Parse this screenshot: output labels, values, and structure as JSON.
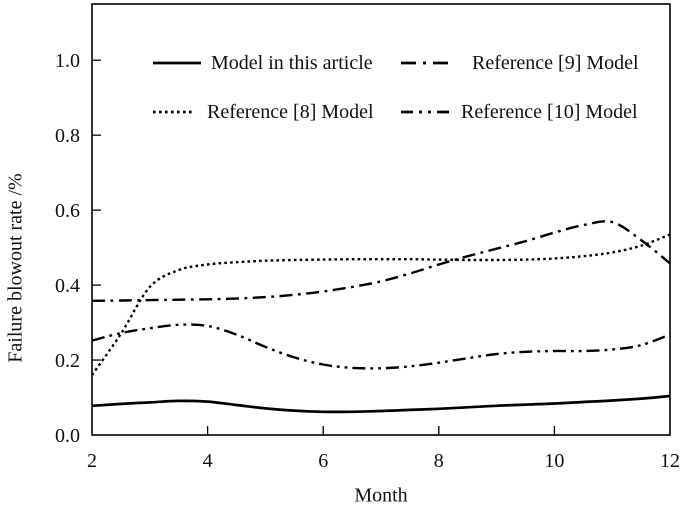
{
  "figure": {
    "background": "#ffffff",
    "line_color": "#000000"
  },
  "chart_data": {
    "type": "line",
    "title": "",
    "xlabel": "Month",
    "ylabel": "Failure blowout rate /%",
    "xlim": [
      2,
      12
    ],
    "ylim": [
      0,
      1.15
    ],
    "xticks": [
      "2",
      "4",
      "6",
      "8",
      "10",
      "12"
    ],
    "xtick_values": [
      2,
      4,
      6,
      8,
      10,
      12
    ],
    "yticks": [
      "0.0",
      "0.2",
      "0.4",
      "0.6",
      "0.8",
      "1.0"
    ],
    "ytick_values": [
      0.0,
      0.2,
      0.4,
      0.6,
      0.8,
      1.0
    ],
    "grid": false,
    "legend_position": "inside-top",
    "x": [
      2,
      2.5,
      3,
      3.5,
      4,
      4.5,
      5,
      5.5,
      6,
      6.5,
      7,
      7.5,
      8,
      8.5,
      9,
      9.5,
      10,
      10.5,
      11,
      11.5,
      12
    ],
    "series": [
      {
        "name": "Model in this article",
        "line_style": "solid",
        "values": [
          0.078,
          0.083,
          0.087,
          0.091,
          0.089,
          0.08,
          0.071,
          0.065,
          0.062,
          0.062,
          0.064,
          0.067,
          0.07,
          0.074,
          0.078,
          0.081,
          0.084,
          0.088,
          0.092,
          0.097,
          0.104
        ]
      },
      {
        "name": "Reference [8] Model",
        "line_style": "dotted",
        "values": [
          0.16,
          0.27,
          0.395,
          0.44,
          0.455,
          0.461,
          0.465,
          0.467,
          0.468,
          0.469,
          0.469,
          0.469,
          0.468,
          0.467,
          0.467,
          0.468,
          0.471,
          0.477,
          0.487,
          0.505,
          0.535
        ]
      },
      {
        "name": "Reference [9] Model",
        "line_style": "dash-dot",
        "values": [
          0.358,
          0.359,
          0.36,
          0.361,
          0.362,
          0.364,
          0.368,
          0.374,
          0.383,
          0.395,
          0.41,
          0.431,
          0.455,
          0.477,
          0.497,
          0.517,
          0.54,
          0.56,
          0.568,
          0.52,
          0.458
        ]
      },
      {
        "name": "Reference [10] Model",
        "line_style": "dash-dot-dot",
        "values": [
          0.252,
          0.272,
          0.285,
          0.294,
          0.291,
          0.268,
          0.235,
          0.207,
          0.188,
          0.179,
          0.178,
          0.183,
          0.193,
          0.205,
          0.216,
          0.222,
          0.224,
          0.224,
          0.228,
          0.24,
          0.268
        ]
      }
    ]
  }
}
